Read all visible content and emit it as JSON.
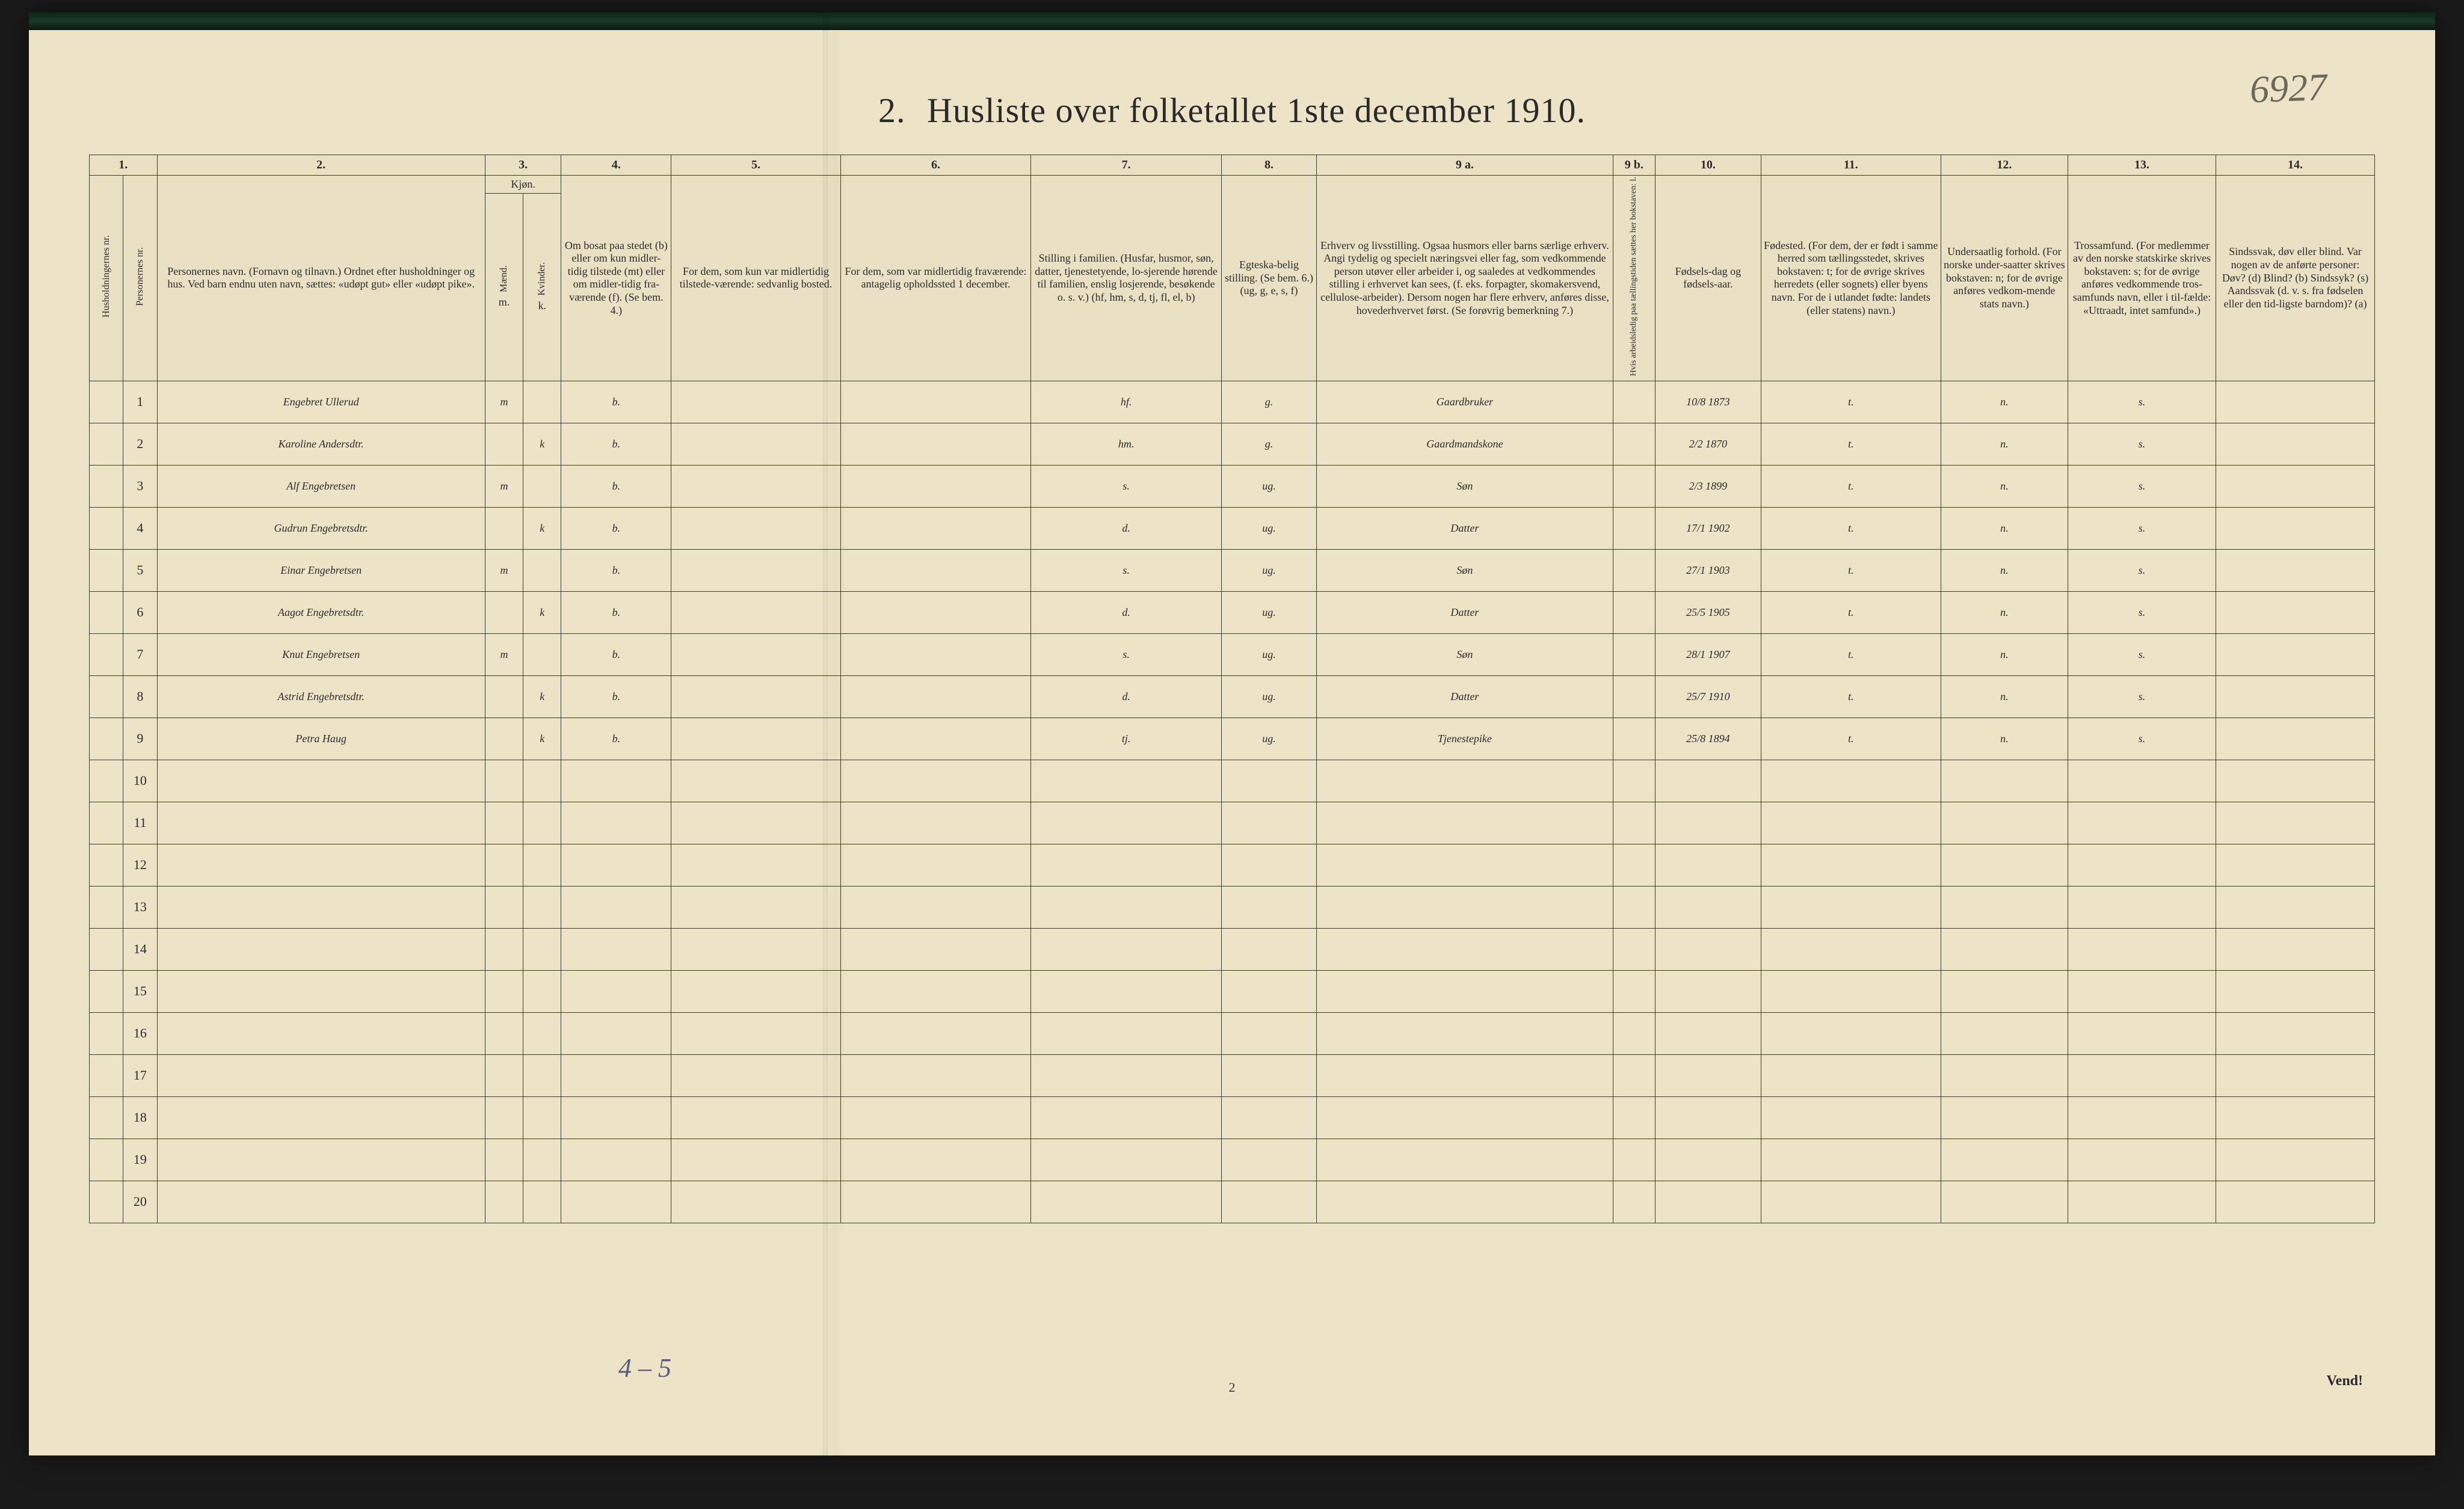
{
  "document": {
    "title_number": "2.",
    "title_text": "Husliste over folketallet 1ste december 1910.",
    "annotation_topright": "6927",
    "bottom_annotation": "4 – 5",
    "page_number_bottom": "2",
    "vend_label": "Vend!",
    "background_color": "#ede4c8",
    "ink_color": "#2a2a2a",
    "handwriting_color": "#3a3a3a"
  },
  "columns": {
    "numbers": [
      "1.",
      "2.",
      "3.",
      "4.",
      "5.",
      "6.",
      "7.",
      "8.",
      "9 a.",
      "9 b.",
      "10.",
      "11.",
      "12.",
      "13.",
      "14."
    ],
    "widths_pct": [
      1.6,
      1.6,
      15.5,
      1.8,
      1.8,
      5.2,
      8.0,
      9.0,
      9.0,
      4.5,
      14.0,
      2.0,
      5.0,
      8.5,
      6.0,
      7.0,
      7.5
    ],
    "headers": {
      "c1a": "Husholdningernes nr.",
      "c1b": "Personernes nr.",
      "c2": "Personernes navn.\n(Fornavn og tilnavn.)\nOrdnet efter husholdninger og hus.\nVed barn endnu uten navn, sættes: «udøpt gut» eller «udøpt pike».",
      "c3_top": "Kjøn.",
      "c3a": "Mænd.",
      "c3b": "Kvinder.",
      "c3_bottom_m": "m.",
      "c3_bottom_k": "k.",
      "c4": "Om bosat paa stedet (b) eller om kun midler-tidig tilstede (mt) eller om midler-tidig fra-værende (f).\n(Se bem. 4.)",
      "c5": "For dem, som kun var midlertidig tilstede-værende:\n\nsedvanlig bosted.",
      "c6": "For dem, som var midlertidig fraværende:\n\nantagelig opholdssted 1 december.",
      "c7": "Stilling i familien.\n(Husfar, husmor, søn, datter, tjenestetyende, lo-sjerende hørende til familien, enslig losjerende, besøkende o. s. v.)\n(hf, hm, s, d, tj, fl, el, b)",
      "c8": "Egteska-belig stilling.\n(Se bem. 6.)\n(ug, g, e, s, f)",
      "c9a": "Erhverv og livsstilling.\nOgsaa husmors eller barns særlige erhverv.\nAngi tydelig og specielt næringsvei eller fag, som vedkommende person utøver eller arbeider i, og saaledes at vedkommendes stilling i erhvervet kan sees, (f. eks. forpagter, skomakersvend, cellulose-arbeider). Dersom nogen har flere erhverv, anføres disse, hovederhvervet først.\n(Se forøvrig bemerkning 7.)",
      "c9b": "Hvis arbeidsledig paa tællingstiden sættes her bokstaven: l.",
      "c10": "Fødsels-dag og fødsels-aar.",
      "c11": "Fødested.\n(For dem, der er født i samme herred som tællingsstedet, skrives bokstaven: t; for de øvrige skrives herredets (eller sognets) eller byens navn.\nFor de i utlandet fødte: landets (eller statens) navn.)",
      "c12": "Undersaatlig forhold.\n(For norske under-saatter skrives bokstaven: n; for de øvrige anføres vedkom-mende stats navn.)",
      "c13": "Trossamfund.\n(For medlemmer av den norske statskirke skrives bokstaven: s; for de øvrige anføres vedkommende tros-samfunds navn, eller i til-fælde: «Uttraadt, intet samfund».)",
      "c14": "Sindssvak, døv eller blind.\nVar nogen av de anførte personer:\nDøv? (d)\nBlind? (b)\nSindssyk? (s)\nAandssvak (d. v. s. fra fødselen eller den tid-ligste barndom)? (a)"
    }
  },
  "rows": [
    {
      "n": "1",
      "name": "Engebret Ullerud",
      "sex": "m",
      "res": "b.",
      "fam": "hf.",
      "mar": "g.",
      "occ": "Gaardbruker",
      "dob": "10/8 1873",
      "birthpl": "t.",
      "nat": "n.",
      "rel": "s."
    },
    {
      "n": "2",
      "name": "Karoline Andersdtr.",
      "sex": "k",
      "res": "b.",
      "fam": "hm.",
      "mar": "g.",
      "occ": "Gaardmandskone",
      "dob": "2/2 1870",
      "birthpl": "t.",
      "nat": "n.",
      "rel": "s."
    },
    {
      "n": "3",
      "name": "Alf Engebretsen",
      "sex": "m",
      "res": "b.",
      "fam": "s.",
      "mar": "ug.",
      "occ": "Søn",
      "dob": "2/3 1899",
      "birthpl": "t.",
      "nat": "n.",
      "rel": "s."
    },
    {
      "n": "4",
      "name": "Gudrun Engebretsdtr.",
      "sex": "k",
      "res": "b.",
      "fam": "d.",
      "mar": "ug.",
      "occ": "Datter",
      "dob": "17/1 1902",
      "birthpl": "t.",
      "nat": "n.",
      "rel": "s."
    },
    {
      "n": "5",
      "name": "Einar Engebretsen",
      "sex": "m",
      "res": "b.",
      "fam": "s.",
      "mar": "ug.",
      "occ": "Søn",
      "dob": "27/1 1903",
      "birthpl": "t.",
      "nat": "n.",
      "rel": "s."
    },
    {
      "n": "6",
      "name": "Aagot Engebretsdtr.",
      "sex": "k",
      "res": "b.",
      "fam": "d.",
      "mar": "ug.",
      "occ": "Datter",
      "dob": "25/5 1905",
      "birthpl": "t.",
      "nat": "n.",
      "rel": "s."
    },
    {
      "n": "7",
      "name": "Knut Engebretsen",
      "sex": "m",
      "res": "b.",
      "fam": "s.",
      "mar": "ug.",
      "occ": "Søn",
      "dob": "28/1 1907",
      "birthpl": "t.",
      "nat": "n.",
      "rel": "s."
    },
    {
      "n": "8",
      "name": "Astrid Engebretsdtr.",
      "sex": "k",
      "res": "b.",
      "fam": "d.",
      "mar": "ug.",
      "occ": "Datter",
      "dob": "25/7 1910",
      "birthpl": "t.",
      "nat": "n.",
      "rel": "s."
    },
    {
      "n": "9",
      "name": "Petra Haug",
      "sex": "k",
      "res": "b.",
      "fam": "tj.",
      "mar": "ug.",
      "occ": "Tjenestepike",
      "dob": "25/8 1894",
      "birthpl": "t.",
      "nat": "n.",
      "rel": "s."
    }
  ],
  "blank_rows": [
    "10",
    "11",
    "12",
    "13",
    "14",
    "15",
    "16",
    "17",
    "18",
    "19",
    "20"
  ]
}
